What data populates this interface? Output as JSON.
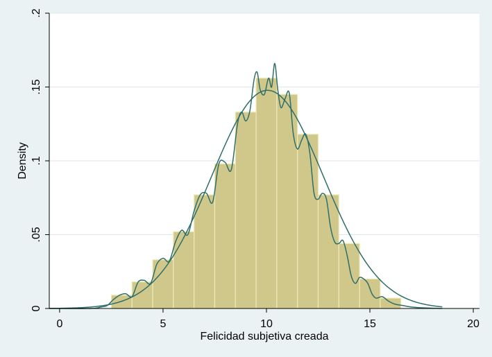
{
  "chart_data": {
    "type": "histogram",
    "title": "",
    "xlabel": "Felicidad subjetiva creada",
    "ylabel": "Density",
    "xlim": [
      -0.5,
      20.3
    ],
    "ylim": [
      0,
      0.2
    ],
    "x_ticks": [
      0,
      5,
      10,
      15,
      20
    ],
    "x_tick_labels": [
      "0",
      "5",
      "10",
      "15",
      "20"
    ],
    "y_ticks": [
      0,
      0.05,
      0.1,
      0.15,
      0.2
    ],
    "y_tick_labels": [
      "0",
      ".05",
      ".1",
      ".15",
      ".2"
    ],
    "grid": "horizontal",
    "bins": [
      {
        "start": 2.5,
        "end": 3.5,
        "density": 0.009
      },
      {
        "start": 3.5,
        "end": 4.5,
        "density": 0.018
      },
      {
        "start": 4.5,
        "end": 5.5,
        "density": 0.033
      },
      {
        "start": 5.5,
        "end": 6.5,
        "density": 0.052
      },
      {
        "start": 6.5,
        "end": 7.5,
        "density": 0.077
      },
      {
        "start": 7.5,
        "end": 8.5,
        "density": 0.098
      },
      {
        "start": 8.5,
        "end": 9.5,
        "density": 0.133
      },
      {
        "start": 9.5,
        "end": 10.5,
        "density": 0.156
      },
      {
        "start": 10.5,
        "end": 11.5,
        "density": 0.145
      },
      {
        "start": 11.5,
        "end": 12.5,
        "density": 0.118
      },
      {
        "start": 12.5,
        "end": 13.5,
        "density": 0.077
      },
      {
        "start": 13.5,
        "end": 14.5,
        "density": 0.044
      },
      {
        "start": 14.5,
        "end": 15.5,
        "density": 0.02
      },
      {
        "start": 15.5,
        "end": 16.5,
        "density": 0.007
      }
    ],
    "normal_curve": {
      "mean": 10.05,
      "sd": 2.7
    },
    "kernel_density": {
      "x": [
        -0.5,
        1.5,
        2.0,
        2.3,
        2.6,
        2.9,
        3.2,
        3.5,
        3.8,
        4.1,
        4.4,
        4.7,
        5.0,
        5.3,
        5.6,
        5.9,
        6.2,
        6.5,
        6.8,
        7.1,
        7.4,
        7.7,
        8.0,
        8.3,
        8.6,
        8.8,
        9.0,
        9.2,
        9.4,
        9.55,
        9.7,
        9.9,
        10.1,
        10.25,
        10.4,
        10.55,
        10.7,
        10.9,
        11.1,
        11.3,
        11.5,
        11.7,
        11.9,
        12.1,
        12.3,
        12.5,
        12.7,
        12.9,
        13.1,
        13.3,
        13.5,
        13.7,
        13.9,
        14.1,
        14.3,
        14.5,
        14.7,
        14.9,
        15.1,
        15.3,
        15.6,
        15.9,
        16.2,
        16.6,
        17.0,
        17.5,
        18.5
      ],
      "y": [
        0,
        0,
        0.001,
        0.002,
        0.006,
        0.009,
        0.01,
        0.008,
        0.018,
        0.019,
        0.017,
        0.03,
        0.034,
        0.032,
        0.045,
        0.053,
        0.05,
        0.066,
        0.077,
        0.078,
        0.072,
        0.098,
        0.099,
        0.094,
        0.125,
        0.133,
        0.127,
        0.134,
        0.155,
        0.16,
        0.148,
        0.145,
        0.156,
        0.15,
        0.166,
        0.148,
        0.136,
        0.142,
        0.146,
        0.118,
        0.108,
        0.114,
        0.118,
        0.105,
        0.078,
        0.074,
        0.078,
        0.074,
        0.055,
        0.045,
        0.044,
        0.046,
        0.036,
        0.022,
        0.017,
        0.021,
        0.02,
        0.017,
        0.01,
        0.007,
        0.008,
        0.005,
        0.003,
        0.002,
        0.001,
        0.0005,
        0
      ]
    }
  }
}
